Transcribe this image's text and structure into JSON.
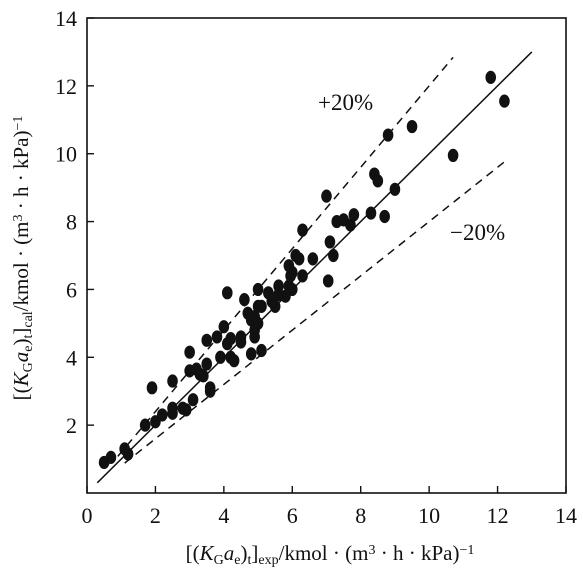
{
  "chart_data": {
    "type": "scatter",
    "xlabel": "[(KGae)t]exp/kmol · (m3 · h · kPa)−1",
    "ylabel": "[(KGae)t]cal/kmol · (m3 · h · kPa)−1",
    "xlim": [
      0,
      14
    ],
    "ylim": [
      0,
      14
    ],
    "xticks": [
      "0",
      "2",
      "4",
      "6",
      "8",
      "10",
      "12",
      "14"
    ],
    "yticks": [
      "2",
      "4",
      "6",
      "8",
      "10",
      "12",
      "14"
    ],
    "grid": false,
    "annotations": [
      "+20%",
      "−20%"
    ],
    "reference_lines": [
      {
        "label": "y = x",
        "slope": 1.0,
        "style": "solid",
        "x": [
          0.3,
          13.0
        ]
      },
      {
        "label": "+20%",
        "slope": 1.2,
        "style": "dashed",
        "x": [
          0.9,
          10.7
        ]
      },
      {
        "label": "−20%",
        "slope": 0.8,
        "style": "dashed",
        "x": [
          1.1,
          12.2
        ]
      }
    ],
    "points": [
      [
        0.5,
        0.9
      ],
      [
        0.7,
        1.05
      ],
      [
        1.1,
        1.3
      ],
      [
        1.2,
        1.15
      ],
      [
        1.7,
        2.0
      ],
      [
        1.9,
        3.1
      ],
      [
        2.0,
        2.1
      ],
      [
        2.2,
        2.3
      ],
      [
        2.5,
        2.5
      ],
      [
        2.5,
        2.35
      ],
      [
        2.5,
        3.3
      ],
      [
        2.8,
        2.5
      ],
      [
        2.9,
        2.45
      ],
      [
        3.0,
        3.6
      ],
      [
        3.0,
        4.15
      ],
      [
        3.1,
        2.75
      ],
      [
        3.2,
        3.65
      ],
      [
        3.3,
        3.5
      ],
      [
        3.4,
        3.45
      ],
      [
        3.5,
        3.8
      ],
      [
        3.5,
        4.5
      ],
      [
        3.6,
        3.1
      ],
      [
        3.6,
        3.0
      ],
      [
        3.8,
        4.6
      ],
      [
        3.9,
        4.0
      ],
      [
        4.0,
        4.9
      ],
      [
        4.1,
        5.9
      ],
      [
        4.1,
        4.4
      ],
      [
        4.2,
        4.55
      ],
      [
        4.2,
        4.0
      ],
      [
        4.3,
        3.9
      ],
      [
        4.5,
        4.45
      ],
      [
        4.5,
        4.6
      ],
      [
        4.6,
        5.7
      ],
      [
        4.7,
        5.3
      ],
      [
        4.8,
        4.1
      ],
      [
        4.8,
        5.1
      ],
      [
        4.9,
        4.6
      ],
      [
        4.9,
        4.8
      ],
      [
        4.9,
        5.2
      ],
      [
        5.0,
        5.5
      ],
      [
        5.0,
        5.0
      ],
      [
        5.0,
        6.0
      ],
      [
        5.1,
        5.5
      ],
      [
        5.1,
        4.2
      ],
      [
        5.3,
        5.9
      ],
      [
        5.4,
        5.65
      ],
      [
        5.5,
        5.5
      ],
      [
        5.6,
        6.1
      ],
      [
        5.6,
        5.85
      ],
      [
        5.8,
        5.8
      ],
      [
        5.9,
        6.1
      ],
      [
        5.9,
        6.7
      ],
      [
        5.95,
        6.4
      ],
      [
        6.0,
        6.0
      ],
      [
        6.0,
        6.5
      ],
      [
        6.1,
        7.0
      ],
      [
        6.2,
        6.9
      ],
      [
        6.3,
        6.4
      ],
      [
        6.3,
        7.75
      ],
      [
        6.6,
        6.9
      ],
      [
        7.0,
        8.75
      ],
      [
        7.05,
        6.25
      ],
      [
        7.1,
        7.4
      ],
      [
        7.2,
        7.0
      ],
      [
        7.3,
        8.0
      ],
      [
        7.5,
        8.05
      ],
      [
        7.7,
        7.9
      ],
      [
        7.8,
        8.2
      ],
      [
        8.3,
        8.25
      ],
      [
        8.4,
        9.4
      ],
      [
        8.5,
        9.2
      ],
      [
        8.7,
        8.15
      ],
      [
        8.8,
        10.55
      ],
      [
        9.0,
        8.95
      ],
      [
        9.5,
        10.8
      ],
      [
        10.7,
        9.95
      ],
      [
        11.8,
        12.25
      ],
      [
        12.2,
        11.55
      ]
    ]
  }
}
